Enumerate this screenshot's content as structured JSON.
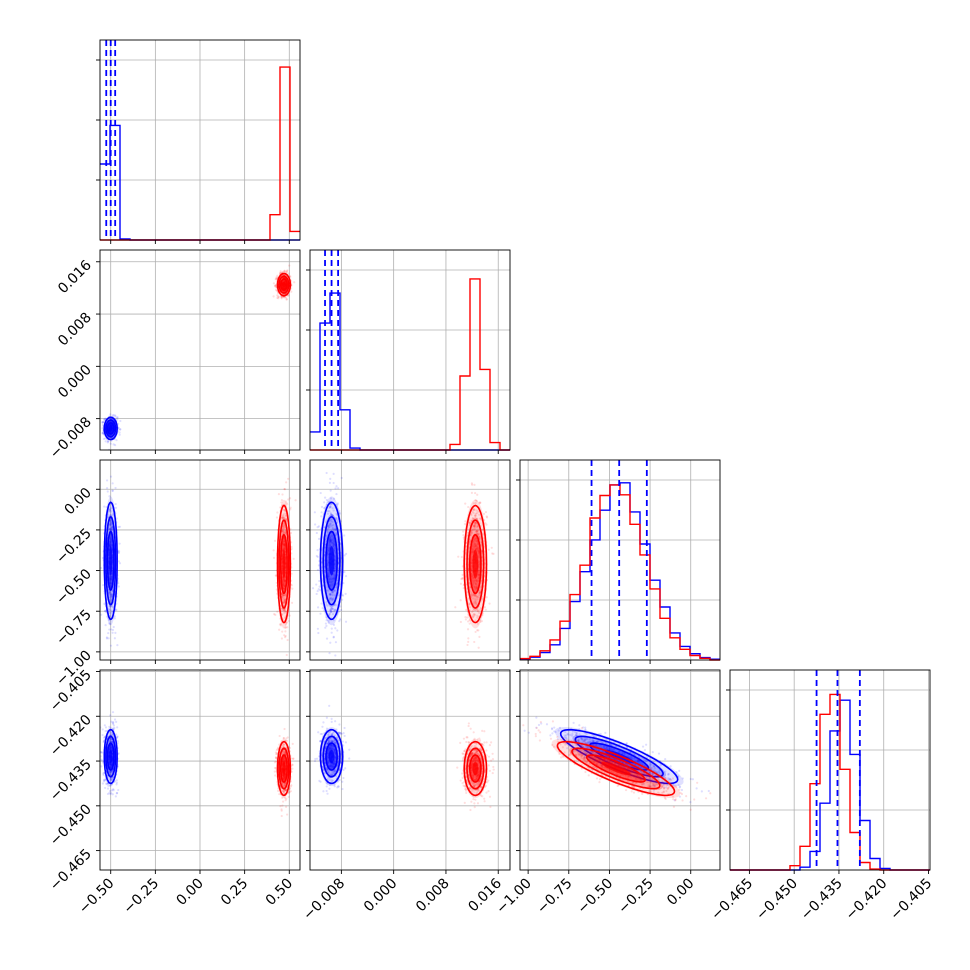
{
  "chart_data": {
    "type": "corner",
    "parameters": 4,
    "grid": true,
    "legend": "none",
    "colors": {
      "series_a": "#0000ff",
      "series_b": "#ff0000"
    },
    "series": [
      {
        "color": "#0000ff",
        "means": [
          -0.5,
          -0.0095,
          -0.44,
          -0.4335
        ],
        "sds": [
          0.018,
          0.00085,
          0.18,
          0.0045
        ],
        "corr_3_4": -0.85
      },
      {
        "color": "#ff0000",
        "means": [
          0.47,
          0.0125,
          -0.46,
          -0.4375
        ],
        "sds": [
          0.018,
          0.00085,
          0.18,
          0.0045
        ],
        "corr_3_4": -0.85
      }
    ],
    "quantile_lines": [
      [
        -0.525,
        -0.5,
        -0.475
      ],
      [
        -0.0105,
        -0.0095,
        -0.0085
      ],
      [
        -0.61,
        -0.44,
        -0.27
      ],
      [
        -0.4425,
        -0.4355,
        -0.428
      ]
    ],
    "axes": [
      {
        "range": [
          -0.56,
          0.56
        ],
        "ticks": [
          -0.5,
          -0.25,
          0.0,
          0.25,
          0.5
        ],
        "tick_labels": [
          "−0.50",
          "−0.25",
          "0.00",
          "0.25",
          "0.50"
        ]
      },
      {
        "range": [
          -0.0128,
          0.0178
        ],
        "ticks": [
          -0.008,
          0.0,
          0.008,
          0.016
        ],
        "tick_labels": [
          "−0.008",
          "0.000",
          "0.008",
          "0.016"
        ]
      },
      {
        "range": [
          -1.05,
          0.18
        ],
        "ticks": [
          -1.0,
          -0.75,
          -0.5,
          -0.25,
          0.0
        ],
        "tick_labels": [
          "−1.00",
          "−0.75",
          "−0.50",
          "−0.25",
          "0.00"
        ]
      },
      {
        "range": [
          -0.4715,
          -0.4045
        ],
        "ticks": [
          -0.465,
          -0.45,
          -0.435,
          -0.42,
          -0.405
        ],
        "tick_labels": [
          "−0.465",
          "−0.450",
          "−0.435",
          "−0.420",
          "−0.405"
        ]
      }
    ]
  }
}
